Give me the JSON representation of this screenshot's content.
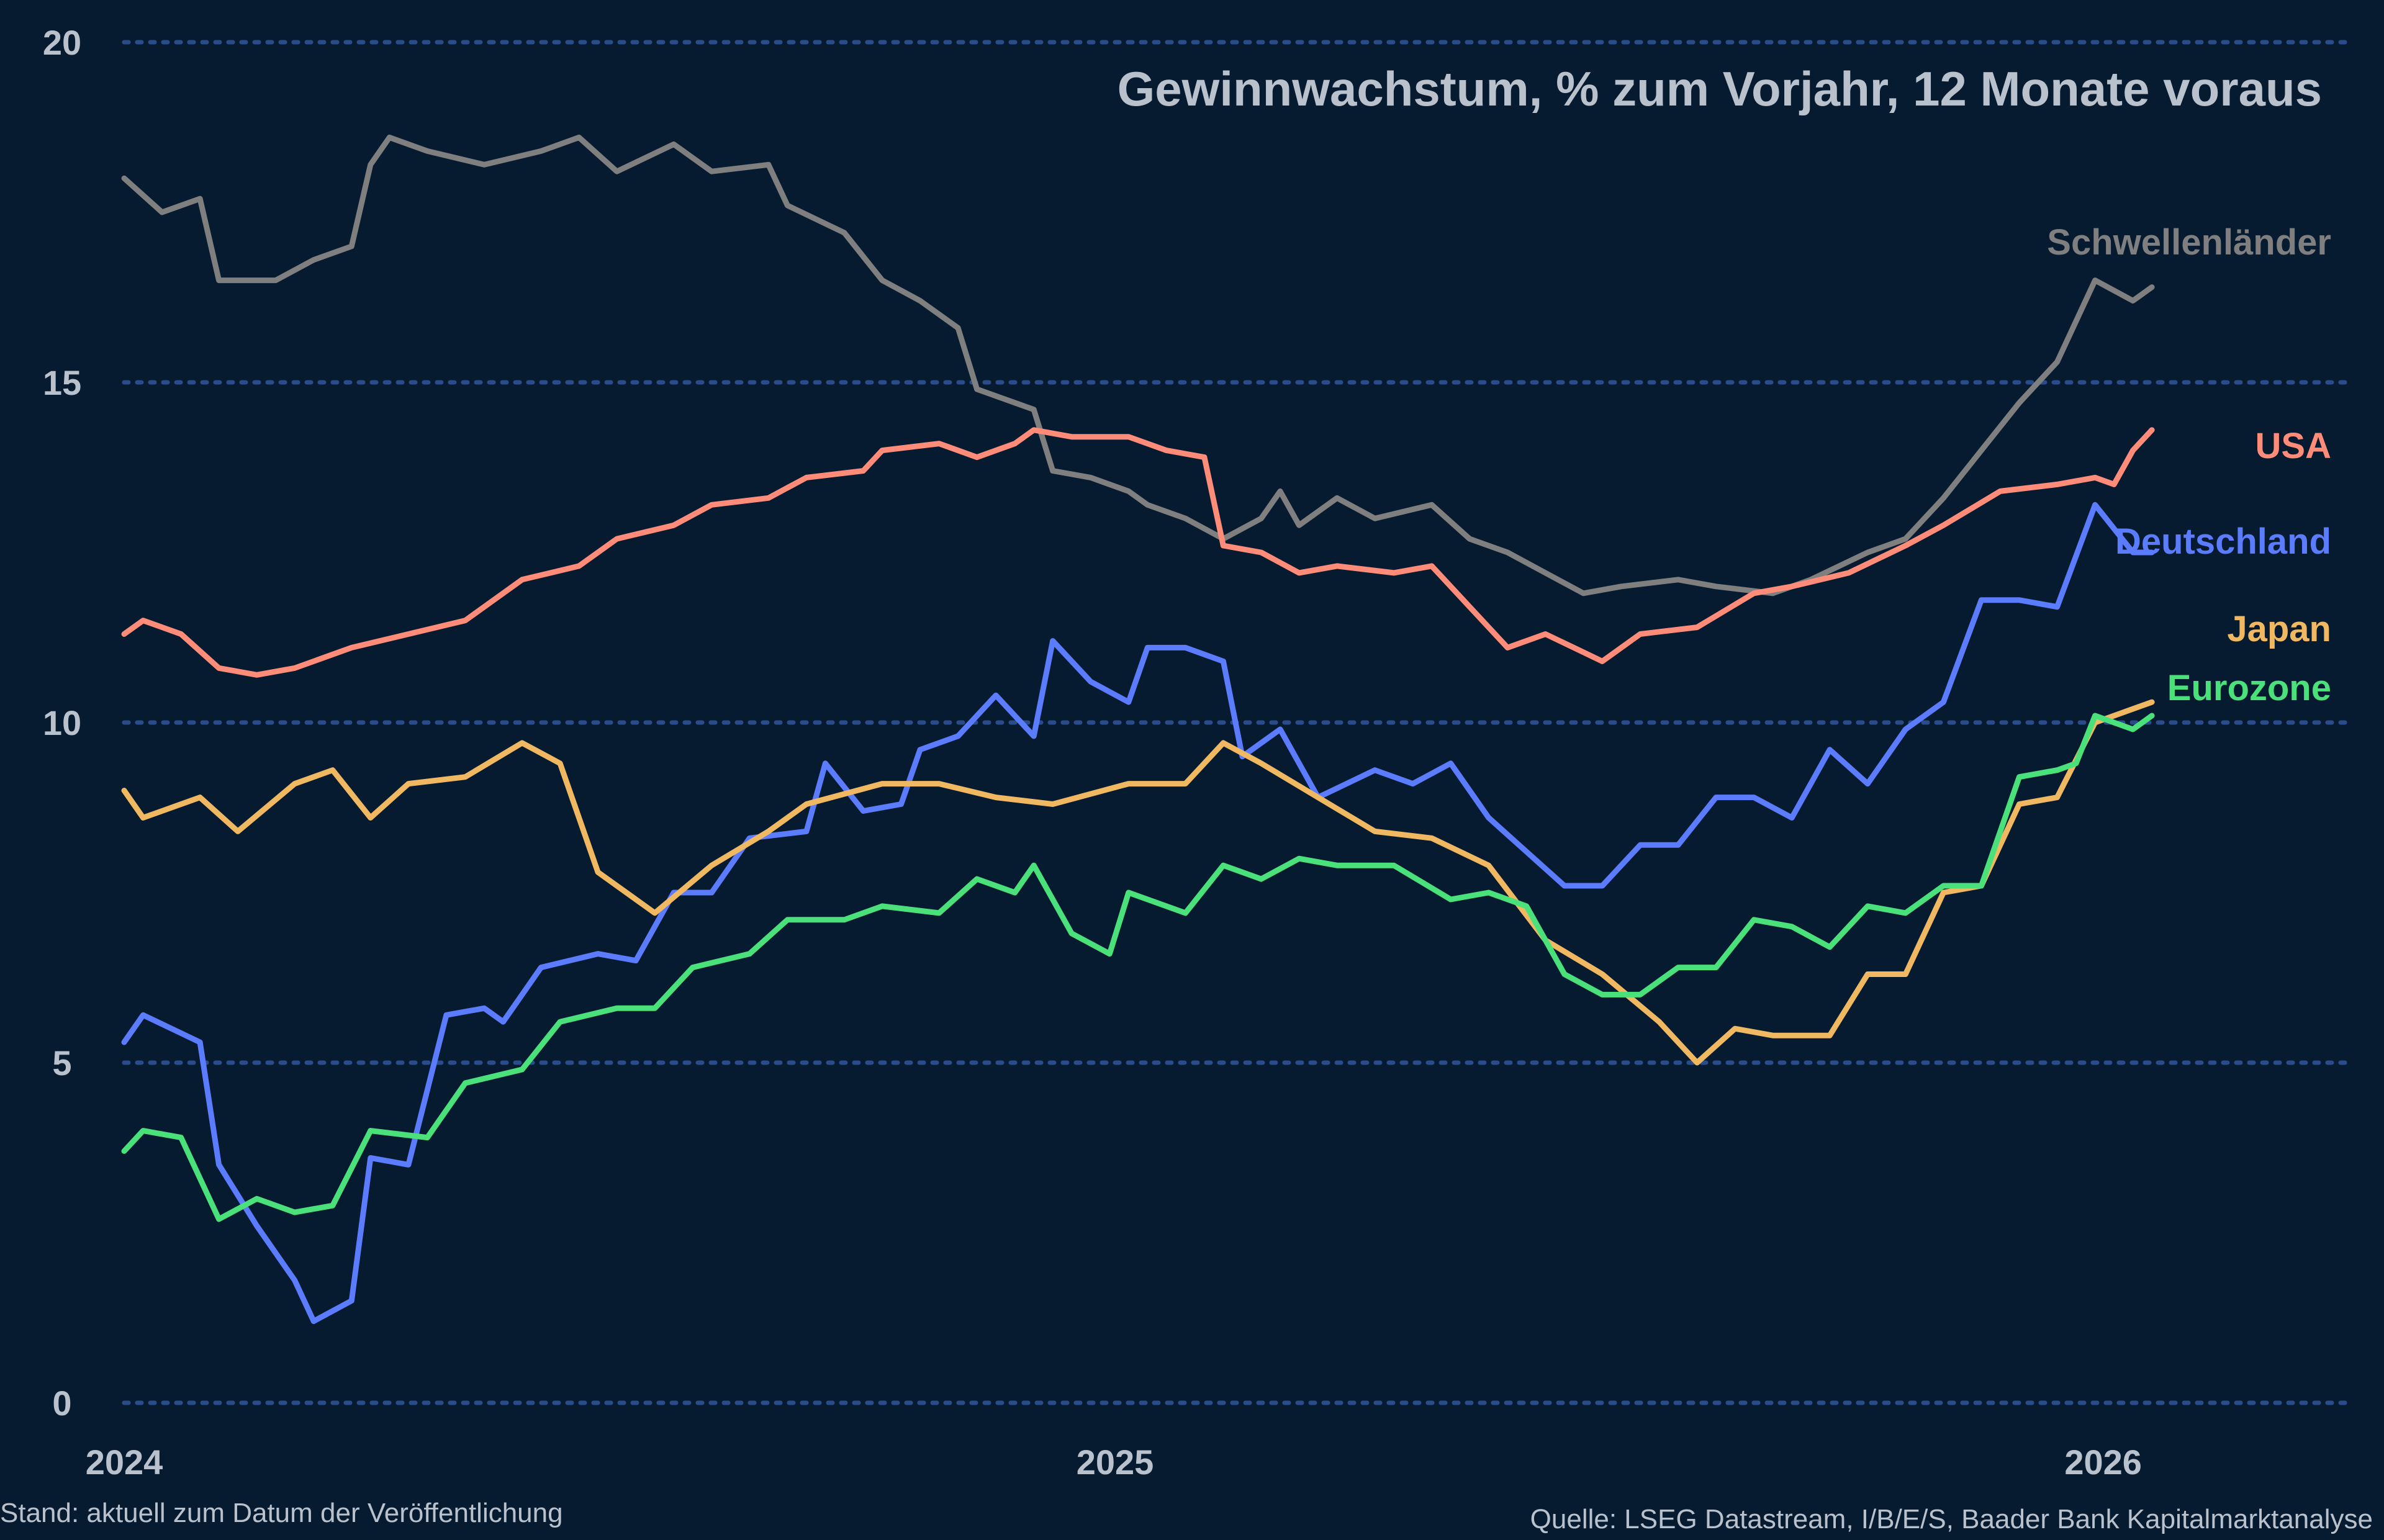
{
  "chart_data": {
    "type": "line",
    "title": "Gewinnwachstum, % zum Vorjahr, 12 Monate voraus",
    "xlabel": "",
    "ylabel": "",
    "x_range": [
      "2024-01-01",
      "2026-03-20"
    ],
    "x_ticks": [
      "2024",
      "2025",
      "2026"
    ],
    "ylim": [
      0,
      20
    ],
    "y_ticks": [
      "0",
      "5",
      "10",
      "15",
      "20"
    ],
    "grid": "horizontal dotted",
    "legend": "labels at right end of lines",
    "series": [
      {
        "name": "Schwellenländer",
        "color": "#7f7f7f",
        "points": [
          [
            "2024-01-01",
            18.0
          ],
          [
            "2024-01-15",
            17.5
          ],
          [
            "2024-01-29",
            17.7
          ],
          [
            "2024-02-05",
            16.5
          ],
          [
            "2024-02-26",
            16.5
          ],
          [
            "2024-03-11",
            16.8
          ],
          [
            "2024-03-25",
            17.0
          ],
          [
            "2024-04-01",
            18.2
          ],
          [
            "2024-04-08",
            18.6
          ],
          [
            "2024-04-22",
            18.4
          ],
          [
            "2024-05-13",
            18.2
          ],
          [
            "2024-06-03",
            18.4
          ],
          [
            "2024-06-17",
            18.6
          ],
          [
            "2024-07-01",
            18.1
          ],
          [
            "2024-07-22",
            18.5
          ],
          [
            "2024-08-05",
            18.1
          ],
          [
            "2024-08-26",
            18.2
          ],
          [
            "2024-09-02",
            17.6
          ],
          [
            "2024-09-23",
            17.2
          ],
          [
            "2024-10-07",
            16.5
          ],
          [
            "2024-10-21",
            16.2
          ],
          [
            "2024-11-04",
            15.8
          ],
          [
            "2024-11-11",
            14.9
          ],
          [
            "2024-11-25",
            14.7
          ],
          [
            "2024-12-02",
            14.6
          ],
          [
            "2024-12-09",
            13.7
          ],
          [
            "2024-12-23",
            13.6
          ],
          [
            "2025-01-06",
            13.4
          ],
          [
            "2025-01-13",
            13.2
          ],
          [
            "2025-01-27",
            13.0
          ],
          [
            "2025-02-10",
            12.7
          ],
          [
            "2025-02-24",
            13.0
          ],
          [
            "2025-03-03",
            13.4
          ],
          [
            "2025-03-10",
            12.9
          ],
          [
            "2025-03-24",
            13.3
          ],
          [
            "2025-04-07",
            13.0
          ],
          [
            "2025-04-28",
            13.2
          ],
          [
            "2025-05-12",
            12.7
          ],
          [
            "2025-05-26",
            12.5
          ],
          [
            "2025-06-09",
            12.2
          ],
          [
            "2025-06-23",
            11.9
          ],
          [
            "2025-07-07",
            12.0
          ],
          [
            "2025-07-28",
            12.1
          ],
          [
            "2025-08-11",
            12.0
          ],
          [
            "2025-09-01",
            11.9
          ],
          [
            "2025-09-15",
            12.1
          ],
          [
            "2025-10-06",
            12.5
          ],
          [
            "2025-10-20",
            12.7
          ],
          [
            "2025-11-03",
            13.3
          ],
          [
            "2025-11-17",
            14.0
          ],
          [
            "2025-12-01",
            14.7
          ],
          [
            "2025-12-15",
            15.3
          ],
          [
            "2025-12-29",
            16.5
          ],
          [
            "2026-01-12",
            16.2
          ],
          [
            "2026-01-19",
            16.4
          ]
        ]
      },
      {
        "name": "USA",
        "color": "#ff8c78",
        "points": [
          [
            "2024-01-01",
            11.3
          ],
          [
            "2024-01-08",
            11.5
          ],
          [
            "2024-01-22",
            11.3
          ],
          [
            "2024-02-05",
            10.8
          ],
          [
            "2024-02-19",
            10.7
          ],
          [
            "2024-03-04",
            10.8
          ],
          [
            "2024-03-25",
            11.1
          ],
          [
            "2024-04-15",
            11.3
          ],
          [
            "2024-05-06",
            11.5
          ],
          [
            "2024-05-27",
            12.1
          ],
          [
            "2024-06-17",
            12.3
          ],
          [
            "2024-07-01",
            12.7
          ],
          [
            "2024-07-22",
            12.9
          ],
          [
            "2024-08-05",
            13.2
          ],
          [
            "2024-08-26",
            13.3
          ],
          [
            "2024-09-09",
            13.6
          ],
          [
            "2024-09-30",
            13.7
          ],
          [
            "2024-10-07",
            14.0
          ],
          [
            "2024-10-28",
            14.1
          ],
          [
            "2024-11-11",
            13.9
          ],
          [
            "2024-11-25",
            14.1
          ],
          [
            "2024-12-02",
            14.3
          ],
          [
            "2024-12-16",
            14.2
          ],
          [
            "2025-01-06",
            14.2
          ],
          [
            "2025-01-20",
            14.0
          ],
          [
            "2025-02-03",
            13.9
          ],
          [
            "2025-02-10",
            12.6
          ],
          [
            "2025-02-24",
            12.5
          ],
          [
            "2025-03-10",
            12.2
          ],
          [
            "2025-03-24",
            12.3
          ],
          [
            "2025-04-14",
            12.2
          ],
          [
            "2025-04-28",
            12.3
          ],
          [
            "2025-05-12",
            11.7
          ],
          [
            "2025-05-26",
            11.1
          ],
          [
            "2025-06-09",
            11.3
          ],
          [
            "2025-06-30",
            10.9
          ],
          [
            "2025-07-14",
            11.3
          ],
          [
            "2025-08-04",
            11.4
          ],
          [
            "2025-08-25",
            11.9
          ],
          [
            "2025-09-08",
            12.0
          ],
          [
            "2025-09-29",
            12.2
          ],
          [
            "2025-10-20",
            12.6
          ],
          [
            "2025-11-03",
            12.9
          ],
          [
            "2025-11-24",
            13.4
          ],
          [
            "2025-12-15",
            13.5
          ],
          [
            "2025-12-29",
            13.6
          ],
          [
            "2026-01-05",
            13.5
          ],
          [
            "2026-01-12",
            14.0
          ],
          [
            "2026-01-19",
            14.3
          ]
        ]
      },
      {
        "name": "Deutschland",
        "color": "#5b7cff",
        "points": [
          [
            "2024-01-01",
            5.3
          ],
          [
            "2024-01-08",
            5.7
          ],
          [
            "2024-01-29",
            5.3
          ],
          [
            "2024-02-05",
            3.5
          ],
          [
            "2024-02-19",
            2.6
          ],
          [
            "2024-03-04",
            1.8
          ],
          [
            "2024-03-11",
            1.2
          ],
          [
            "2024-03-25",
            1.5
          ],
          [
            "2024-04-01",
            3.6
          ],
          [
            "2024-04-15",
            3.5
          ],
          [
            "2024-04-29",
            5.7
          ],
          [
            "2024-05-13",
            5.8
          ],
          [
            "2024-05-20",
            5.6
          ],
          [
            "2024-06-03",
            6.4
          ],
          [
            "2024-06-24",
            6.6
          ],
          [
            "2024-07-08",
            6.5
          ],
          [
            "2024-07-22",
            7.5
          ],
          [
            "2024-08-05",
            7.5
          ],
          [
            "2024-08-19",
            8.3
          ],
          [
            "2024-09-09",
            8.4
          ],
          [
            "2024-09-16",
            9.4
          ],
          [
            "2024-09-30",
            8.7
          ],
          [
            "2024-10-14",
            8.8
          ],
          [
            "2024-10-21",
            9.6
          ],
          [
            "2024-11-04",
            9.8
          ],
          [
            "2024-11-18",
            10.4
          ],
          [
            "2024-12-02",
            9.8
          ],
          [
            "2024-12-09",
            11.2
          ],
          [
            "2024-12-23",
            10.6
          ],
          [
            "2025-01-06",
            10.3
          ],
          [
            "2025-01-13",
            11.1
          ],
          [
            "2025-01-27",
            11.1
          ],
          [
            "2025-02-10",
            10.9
          ],
          [
            "2025-02-17",
            9.5
          ],
          [
            "2025-03-03",
            9.9
          ],
          [
            "2025-03-17",
            8.9
          ],
          [
            "2025-04-07",
            9.3
          ],
          [
            "2025-04-21",
            9.1
          ],
          [
            "2025-05-05",
            9.4
          ],
          [
            "2025-05-19",
            8.6
          ],
          [
            "2025-06-02",
            8.1
          ],
          [
            "2025-06-16",
            7.6
          ],
          [
            "2025-06-30",
            7.6
          ],
          [
            "2025-07-14",
            8.2
          ],
          [
            "2025-07-28",
            8.2
          ],
          [
            "2025-08-11",
            8.9
          ],
          [
            "2025-08-25",
            8.9
          ],
          [
            "2025-09-08",
            8.6
          ],
          [
            "2025-09-22",
            9.6
          ],
          [
            "2025-10-06",
            9.1
          ],
          [
            "2025-10-20",
            9.9
          ],
          [
            "2025-11-03",
            10.3
          ],
          [
            "2025-11-17",
            11.8
          ],
          [
            "2025-12-01",
            11.8
          ],
          [
            "2025-12-15",
            11.7
          ],
          [
            "2025-12-29",
            13.2
          ],
          [
            "2026-01-12",
            12.5
          ],
          [
            "2026-01-19",
            12.5
          ]
        ]
      },
      {
        "name": "Japan",
        "color": "#f0b860",
        "points": [
          [
            "2024-01-01",
            9.0
          ],
          [
            "2024-01-08",
            8.6
          ],
          [
            "2024-01-29",
            8.9
          ],
          [
            "2024-02-12",
            8.4
          ],
          [
            "2024-03-04",
            9.1
          ],
          [
            "2024-03-18",
            9.3
          ],
          [
            "2024-04-01",
            8.6
          ],
          [
            "2024-04-15",
            9.1
          ],
          [
            "2024-05-06",
            9.2
          ],
          [
            "2024-05-27",
            9.7
          ],
          [
            "2024-06-10",
            9.4
          ],
          [
            "2024-06-24",
            7.8
          ],
          [
            "2024-07-15",
            7.2
          ],
          [
            "2024-08-05",
            7.9
          ],
          [
            "2024-08-26",
            8.4
          ],
          [
            "2024-09-09",
            8.8
          ],
          [
            "2024-10-07",
            9.1
          ],
          [
            "2024-10-28",
            9.1
          ],
          [
            "2024-11-18",
            8.9
          ],
          [
            "2024-12-09",
            8.8
          ],
          [
            "2025-01-06",
            9.1
          ],
          [
            "2025-01-27",
            9.1
          ],
          [
            "2025-02-10",
            9.7
          ],
          [
            "2025-02-24",
            9.4
          ],
          [
            "2025-03-17",
            8.9
          ],
          [
            "2025-04-07",
            8.4
          ],
          [
            "2025-04-28",
            8.3
          ],
          [
            "2025-05-19",
            7.9
          ],
          [
            "2025-06-09",
            6.8
          ],
          [
            "2025-06-30",
            6.3
          ],
          [
            "2025-07-21",
            5.6
          ],
          [
            "2025-08-04",
            5.0
          ],
          [
            "2025-08-18",
            5.5
          ],
          [
            "2025-09-01",
            5.4
          ],
          [
            "2025-09-22",
            5.4
          ],
          [
            "2025-10-06",
            6.3
          ],
          [
            "2025-10-20",
            6.3
          ],
          [
            "2025-11-03",
            7.5
          ],
          [
            "2025-11-17",
            7.6
          ],
          [
            "2025-12-01",
            8.8
          ],
          [
            "2025-12-15",
            8.9
          ],
          [
            "2025-12-29",
            10.0
          ],
          [
            "2026-01-19",
            10.3
          ]
        ]
      },
      {
        "name": "Eurozone",
        "color": "#4be17a",
        "points": [
          [
            "2024-01-01",
            3.7
          ],
          [
            "2024-01-08",
            4.0
          ],
          [
            "2024-01-22",
            3.9
          ],
          [
            "2024-02-05",
            2.7
          ],
          [
            "2024-02-19",
            3.0
          ],
          [
            "2024-03-04",
            2.8
          ],
          [
            "2024-03-18",
            2.9
          ],
          [
            "2024-04-01",
            4.0
          ],
          [
            "2024-04-22",
            3.9
          ],
          [
            "2024-05-06",
            4.7
          ],
          [
            "2024-05-27",
            4.9
          ],
          [
            "2024-06-10",
            5.6
          ],
          [
            "2024-07-01",
            5.8
          ],
          [
            "2024-07-15",
            5.8
          ],
          [
            "2024-07-29",
            6.4
          ],
          [
            "2024-08-19",
            6.6
          ],
          [
            "2024-09-02",
            7.1
          ],
          [
            "2024-09-23",
            7.1
          ],
          [
            "2024-10-07",
            7.3
          ],
          [
            "2024-10-28",
            7.2
          ],
          [
            "2024-11-11",
            7.7
          ],
          [
            "2024-11-25",
            7.5
          ],
          [
            "2024-12-02",
            7.9
          ],
          [
            "2024-12-16",
            6.9
          ],
          [
            "2024-12-30",
            6.6
          ],
          [
            "2025-01-06",
            7.5
          ],
          [
            "2025-01-27",
            7.2
          ],
          [
            "2025-02-10",
            7.9
          ],
          [
            "2025-02-24",
            7.7
          ],
          [
            "2025-03-10",
            8.0
          ],
          [
            "2025-03-24",
            7.9
          ],
          [
            "2025-04-14",
            7.9
          ],
          [
            "2025-05-05",
            7.4
          ],
          [
            "2025-05-19",
            7.5
          ],
          [
            "2025-06-02",
            7.3
          ],
          [
            "2025-06-16",
            6.3
          ],
          [
            "2025-06-30",
            6.0
          ],
          [
            "2025-07-14",
            6.0
          ],
          [
            "2025-07-28",
            6.4
          ],
          [
            "2025-08-11",
            6.4
          ],
          [
            "2025-08-25",
            7.1
          ],
          [
            "2025-09-08",
            7.0
          ],
          [
            "2025-09-22",
            6.7
          ],
          [
            "2025-10-06",
            7.3
          ],
          [
            "2025-10-20",
            7.2
          ],
          [
            "2025-11-03",
            7.6
          ],
          [
            "2025-11-17",
            7.6
          ],
          [
            "2025-12-01",
            9.2
          ],
          [
            "2025-12-15",
            9.3
          ],
          [
            "2025-12-22",
            9.4
          ],
          [
            "2025-12-29",
            10.1
          ],
          [
            "2026-01-12",
            9.9
          ],
          [
            "2026-01-19",
            10.1
          ]
        ]
      }
    ]
  },
  "footer": {
    "left": "Stand: aktuell zum Datum der Veröffentlichung",
    "right": "Quelle: LSEG Datastream, I/B/E/S, Baader Bank Kapitalmarktanalyse"
  },
  "colors": {
    "background": "#061a30",
    "text": "#b9c2cc",
    "grid": "#2b4c8a"
  }
}
